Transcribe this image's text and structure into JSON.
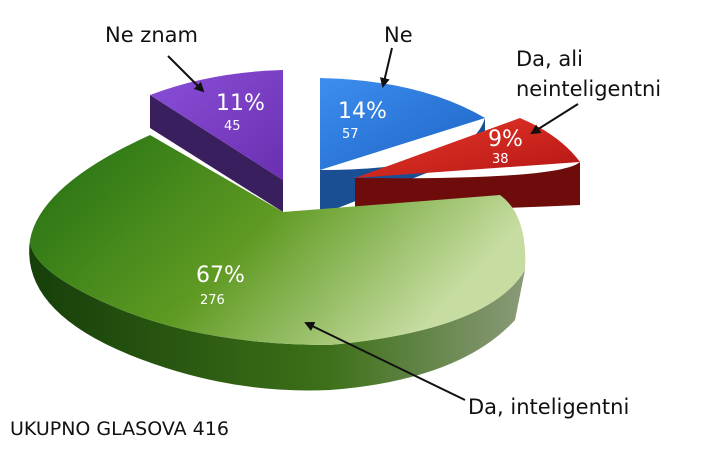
{
  "chart_data": {
    "type": "pie",
    "style": "3d-exploded",
    "slices": [
      {
        "name": "Ne",
        "percent_label": "14%",
        "count": "57",
        "value": 57,
        "color": "#2f7fdc",
        "side_color": "#1a4f94"
      },
      {
        "name": "Da, ali neinteligentni",
        "name_lines": [
          "Da, ali",
          "neinteligentni"
        ],
        "percent_label": "9%",
        "count": "38",
        "value": 38,
        "color": "#d62020",
        "side_color": "#7a0c0c"
      },
      {
        "name": "Da, inteligentni",
        "percent_label": "67%",
        "count": "276",
        "value": 276,
        "color": "#4a8a1c",
        "side_color": "#2e5e10"
      },
      {
        "name": "Ne znam",
        "percent_label": "11%",
        "count": "45",
        "value": 45,
        "color": "#7d3fc4",
        "side_color": "#3d2060"
      }
    ],
    "total_label": "UKUPNO GLASOVA 416",
    "legend": "none"
  }
}
